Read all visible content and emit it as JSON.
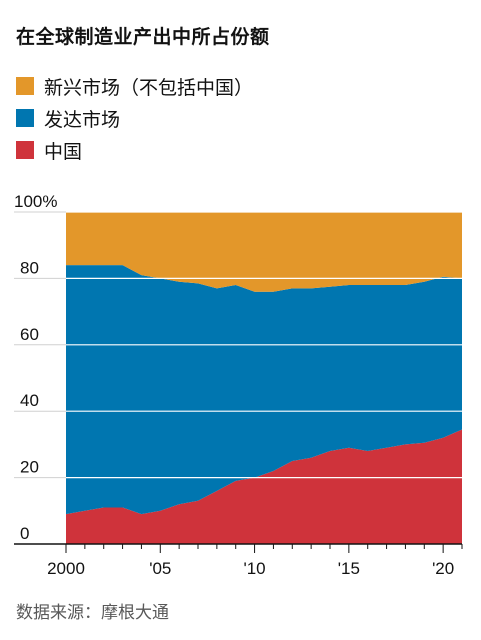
{
  "title": "在全球制造业产出中所占份额",
  "legend": [
    {
      "label": "新兴市场（不包括中国）",
      "color": "#E3972A"
    },
    {
      "label": "发达市场",
      "color": "#0076B0"
    },
    {
      "label": "中国",
      "color": "#CF333B"
    }
  ],
  "source": "数据来源：摩根大通",
  "chart_data": {
    "type": "area",
    "stacked": true,
    "x": [
      2000,
      2001,
      2002,
      2003,
      2004,
      2005,
      2006,
      2007,
      2008,
      2009,
      2010,
      2011,
      2012,
      2013,
      2014,
      2015,
      2016,
      2017,
      2018,
      2019,
      2020,
      2021
    ],
    "series": [
      {
        "name": "中国",
        "color": "#CF333B",
        "values": [
          9,
          10,
          11,
          11,
          9,
          10,
          12,
          13,
          16,
          19,
          20,
          22,
          25,
          26,
          28,
          29,
          28,
          29,
          30,
          30.5,
          32,
          34.5
        ]
      },
      {
        "name": "发达市场",
        "color": "#0076B0",
        "values": [
          75,
          74,
          73,
          73,
          72,
          70,
          67,
          65.5,
          61,
          59,
          56,
          54,
          52,
          51,
          49.5,
          49,
          50,
          49,
          48,
          48.5,
          48.5,
          45.5
        ]
      },
      {
        "name": "新兴市场（不包括中国）",
        "color": "#E3972A",
        "values": [
          16,
          16,
          16,
          16,
          19,
          20,
          21,
          21.5,
          23,
          22,
          24,
          24,
          23,
          23,
          22.5,
          22,
          22,
          22,
          22,
          21,
          19.5,
          20
        ]
      }
    ],
    "xticks": [
      2000,
      2005,
      2010,
      2015,
      2020
    ],
    "xtick_labels": [
      "2000",
      "'05",
      "'10",
      "'15",
      "'20"
    ],
    "yticks": [
      0,
      20,
      40,
      60,
      80,
      100
    ],
    "ytick_labels": [
      "0",
      "20",
      "40",
      "60",
      "80",
      "100%"
    ],
    "xlim": [
      2000,
      2021
    ],
    "ylim": [
      0,
      100
    ],
    "grid": true
  }
}
